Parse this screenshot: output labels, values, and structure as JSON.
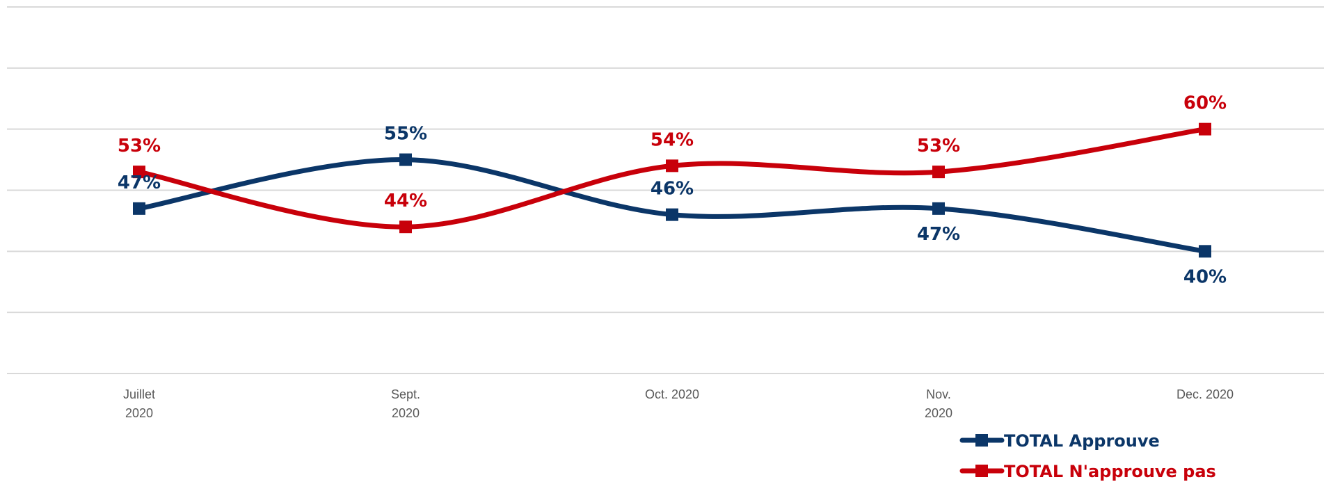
{
  "chart_data": {
    "type": "line",
    "title": "",
    "xlabel": "",
    "ylabel": "",
    "categories": [
      [
        "Juillet",
        "2020"
      ],
      [
        "Sept.",
        "2020"
      ],
      [
        "Oct. 2020"
      ],
      [
        "Nov.",
        "2020"
      ],
      [
        "Dec. 2020"
      ]
    ],
    "ylim": [
      20,
      80
    ],
    "grid": true,
    "smooth": true,
    "legend_position": "bottom-right",
    "series": [
      {
        "name": "TOTAL Approuve",
        "color": "#0b3668",
        "marker": "square",
        "values": [
          47,
          55,
          46,
          47,
          40
        ],
        "labels": [
          "47%",
          "55%",
          "46%",
          "47%",
          "40%"
        ],
        "label_positions": [
          "above",
          "above",
          "above",
          "below",
          "below"
        ]
      },
      {
        "name": "TOTAL N'approuve pas",
        "color": "#c8000a",
        "marker": "square",
        "values": [
          53,
          44,
          54,
          53,
          60
        ],
        "labels": [
          "53%",
          "44%",
          "54%",
          "53%",
          "60%"
        ],
        "label_positions": [
          "above",
          "above",
          "above",
          "above",
          "above"
        ]
      }
    ]
  }
}
